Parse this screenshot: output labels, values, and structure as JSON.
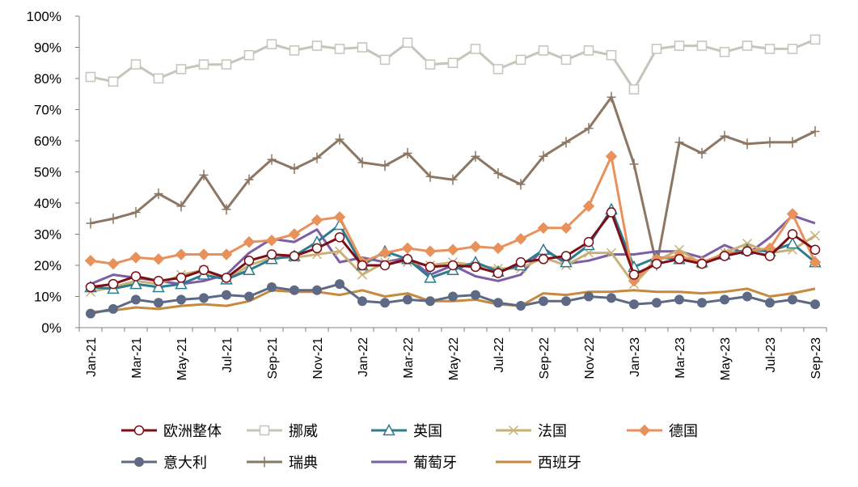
{
  "chart_data": {
    "type": "line",
    "title": "",
    "xlabel": "",
    "ylabel": "",
    "ylim": [
      0,
      100
    ],
    "y_tick_labels": [
      "0%",
      "10%",
      "20%",
      "30%",
      "40%",
      "50%",
      "60%",
      "70%",
      "80%",
      "90%",
      "100%"
    ],
    "x": [
      "Jan-21",
      "Feb-21",
      "Mar-21",
      "Apr-21",
      "May-21",
      "Jun-21",
      "Jul-21",
      "Aug-21",
      "Sep-21",
      "Oct-21",
      "Nov-21",
      "Dec-21",
      "Jan-22",
      "Feb-22",
      "Mar-22",
      "Apr-22",
      "May-22",
      "Jun-22",
      "Jul-22",
      "Aug-22",
      "Sep-22",
      "Oct-22",
      "Nov-22",
      "Dec-22",
      "Jan-23",
      "Feb-23",
      "Mar-23",
      "Apr-23",
      "May-23",
      "Jun-23",
      "Jul-23",
      "Aug-23",
      "Sep-23"
    ],
    "x_tick_labels": [
      "Jan-21",
      "Mar-21",
      "May-21",
      "Jul-21",
      "Sep-21",
      "Nov-21",
      "Jan-22",
      "Mar-22",
      "May-22",
      "Jul-22",
      "Sep-22",
      "Nov-22",
      "Jan-23",
      "Mar-23",
      "May-23",
      "Jul-23",
      "Sep-23"
    ],
    "grid": false,
    "legend_position": "bottom",
    "series": [
      {
        "name": "欧洲整体",
        "color": "#7b0e16",
        "marker": "circle-open",
        "values": [
          13,
          14,
          16.5,
          15,
          16,
          18.5,
          16,
          21.5,
          23.5,
          23,
          25.5,
          29,
          20,
          20,
          22,
          19.5,
          20,
          19.5,
          17.5,
          21,
          22,
          23,
          27.5,
          37,
          17,
          20.5,
          22,
          20.5,
          23,
          24.5,
          23,
          30,
          25
        ]
      },
      {
        "name": "挪威",
        "color": "#c3c6b9",
        "marker": "square-open",
        "values": [
          80.5,
          79,
          84.5,
          80,
          83,
          84.5,
          84.5,
          87.5,
          91,
          89,
          90.5,
          89.5,
          90,
          86,
          91.5,
          84.5,
          85,
          89.5,
          83,
          86,
          89,
          86,
          89,
          87.5,
          76.5,
          89.5,
          90.5,
          90.5,
          88.5,
          90.5,
          89.5,
          89.5,
          92.5
        ]
      },
      {
        "name": "英国",
        "color": "#2d7b8e",
        "marker": "triangle-open",
        "values": [
          13,
          12.5,
          14,
          13,
          14,
          17,
          15.5,
          18.5,
          22,
          23,
          27.5,
          33,
          20,
          24.5,
          22,
          16,
          18.5,
          21,
          18,
          20,
          25,
          21,
          26.5,
          38,
          19.5,
          22.5,
          22,
          21,
          23.5,
          25,
          24.5,
          27,
          21
        ]
      },
      {
        "name": "法国",
        "color": "#c9b176",
        "marker": "x",
        "values": [
          11.5,
          13,
          15,
          14,
          17,
          18.5,
          15.5,
          20,
          22.5,
          22.5,
          23.5,
          24.5,
          17,
          21,
          21,
          20,
          21,
          20,
          19,
          19,
          22.5,
          20,
          24,
          24,
          14,
          21.5,
          25,
          20.5,
          24,
          27,
          24,
          25,
          29.5
        ]
      },
      {
        "name": "德国",
        "color": "#e8915b",
        "marker": "diamond",
        "values": [
          21.5,
          20.5,
          22.5,
          22,
          23.5,
          23.5,
          23.5,
          27.5,
          28,
          30,
          34.5,
          35.5,
          21,
          24,
          25.5,
          24.5,
          25,
          26,
          25.5,
          28.5,
          32,
          32,
          39,
          55,
          15,
          22,
          23,
          21,
          23.5,
          24.5,
          25.5,
          36.5,
          21
        ]
      },
      {
        "name": "意大利",
        "color": "#5e6a85",
        "marker": "circle",
        "values": [
          4.5,
          6,
          9,
          8,
          9,
          9.5,
          10.5,
          10,
          13,
          12,
          12,
          14,
          8.5,
          8,
          9,
          8.5,
          10,
          10.5,
          8,
          7,
          8.5,
          8.5,
          10,
          9.5,
          7.5,
          8,
          9,
          8,
          9,
          10,
          8,
          9,
          7.5
        ]
      },
      {
        "name": "瑞典",
        "color": "#8b7763",
        "marker": "plus",
        "values": [
          33.5,
          35,
          37,
          43,
          39,
          49,
          38,
          47.5,
          54,
          51,
          54.5,
          60.5,
          53,
          52,
          56,
          48.5,
          47.5,
          55,
          49.5,
          46,
          55,
          59.5,
          64,
          74,
          52.5,
          20,
          59.5,
          56,
          61.5,
          59,
          59.5,
          59.5,
          63
        ]
      },
      {
        "name": "葡萄牙",
        "color": "#7c5da6",
        "marker": "none",
        "values": [
          14,
          17,
          16,
          15,
          14,
          15,
          17,
          24,
          28.5,
          27.5,
          31.5,
          21,
          22.5,
          21,
          22.5,
          17,
          20,
          16.5,
          15,
          17,
          25.5,
          20.5,
          21.5,
          23.5,
          23.5,
          24.5,
          24.5,
          22.5,
          26.5,
          23.5,
          29,
          36,
          33.5
        ]
      },
      {
        "name": "西班牙",
        "color": "#c58a3f",
        "marker": "none",
        "values": [
          5,
          5.5,
          6.5,
          6,
          7,
          7.5,
          7,
          8.5,
          12,
          11.5,
          11.5,
          10.5,
          12,
          10,
          11,
          8.5,
          8.5,
          9,
          7.5,
          7,
          11,
          10.5,
          11.5,
          11.5,
          12,
          11.5,
          11.5,
          11,
          11.5,
          12.5,
          10,
          11,
          12.5
        ]
      }
    ]
  }
}
